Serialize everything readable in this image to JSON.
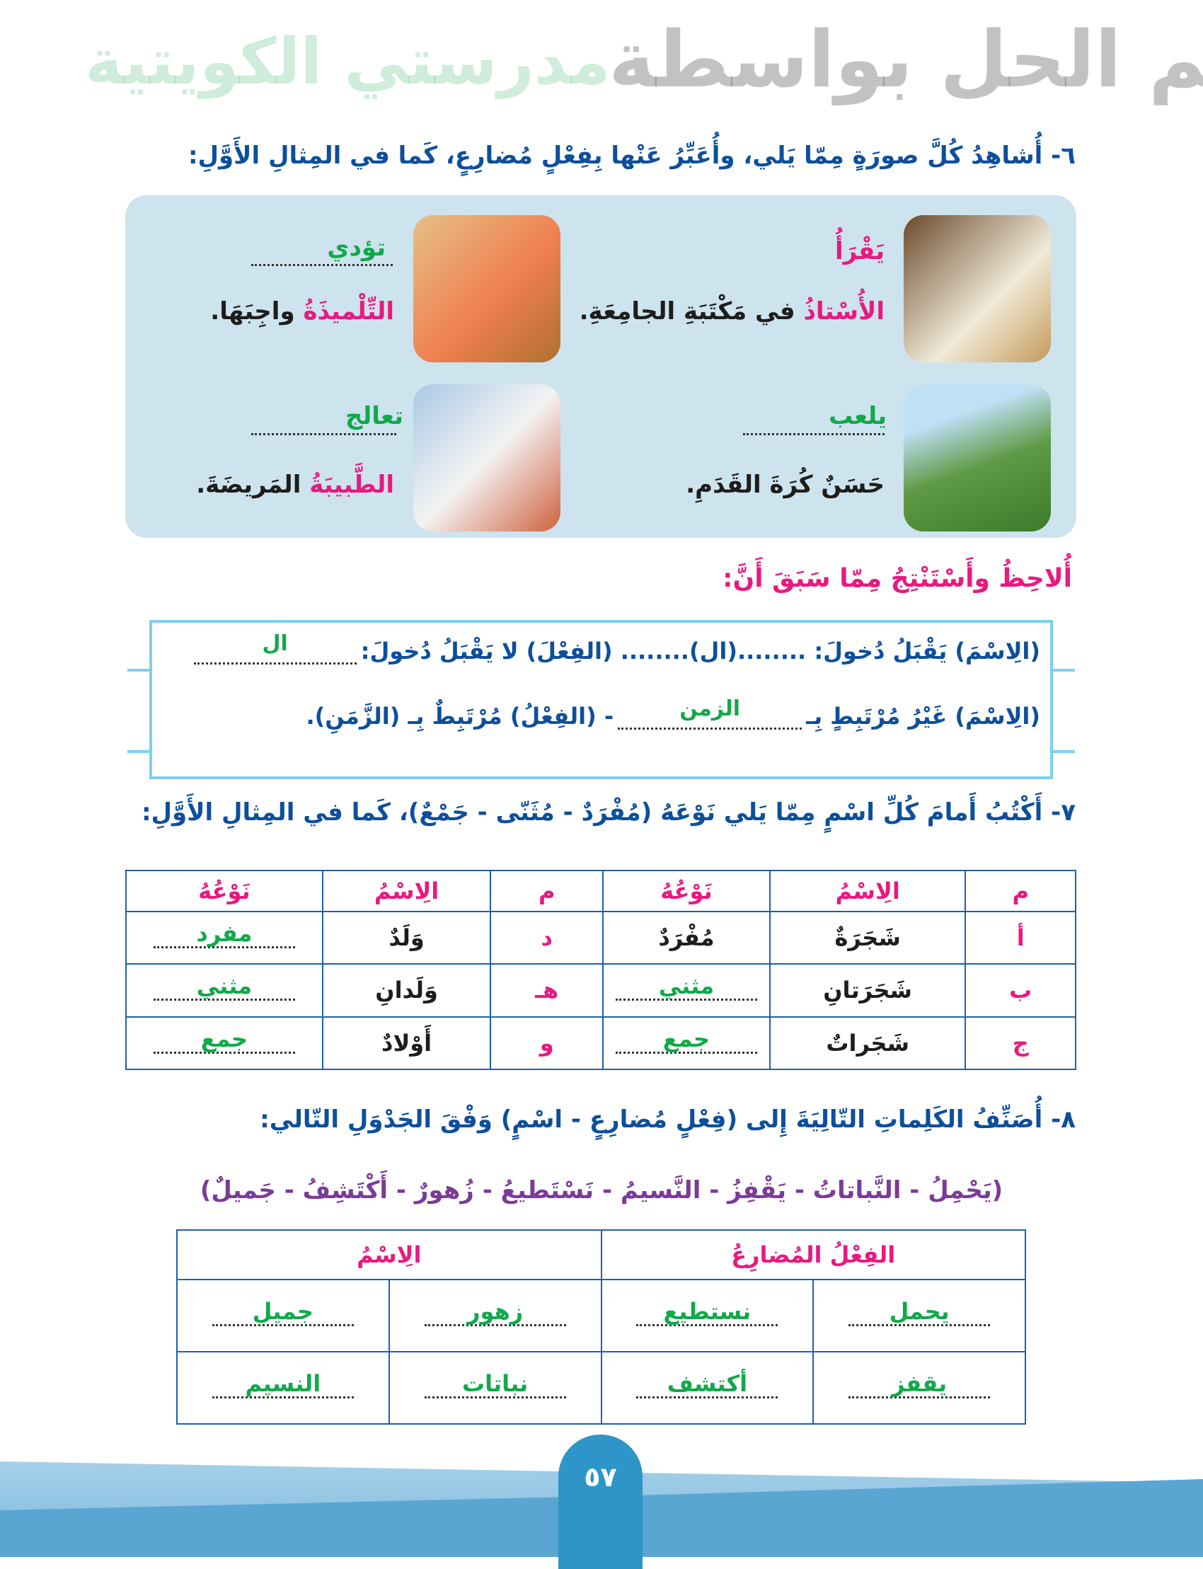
{
  "q6": {
    "title": "٦- أُشاهِدُ كُلَّ صورَةٍ مِمّا يَلي، وأُعَبِّرُ عَنْها بِفِعْلٍ مُضارِعٍ، كَما في المِثالِ الأَوَّلِ:",
    "items": [
      {
        "image": "man-reading-book",
        "answer": "يَقْرَأُ",
        "subject": "الأُسْتاذُ",
        "rest": " في مَكْتَبَةِ الجامِعَةِ."
      },
      {
        "image": "girl-writing-homework",
        "answer": "تؤدي",
        "subject": "التِّلْميذَةُ",
        "rest": " واجِبَهَا."
      },
      {
        "image": "boy-playing-football",
        "answer": "يلعب",
        "subject": "حَسَنٌ",
        "rest": " كُرَةَ القَدَمِ."
      },
      {
        "image": "doctor-with-patient",
        "answer": "تعالج",
        "subject": "الطَّبيبَةُ",
        "rest": " المَريضَةَ."
      }
    ]
  },
  "note": {
    "title": "أُلاحِظُ وأَسْتَنْتِجُ مِمّا سَبَقَ أَنَّ:",
    "line1_a": "(الِاسْمَ) يَقْبَلُ دُخولَ: ........(ال)........ (الفِعْلَ) لا يَقْبَلُ دُخولَ: ",
    "line1_answer": "ال",
    "line2_a": "(الِاسْمَ) غَيْرُ مُرْتَبِطٍ بِـ ",
    "line2_answer": "الزمن",
    "line2_b": " - (الفِعْلُ) مُرْتَبِطٌ بِـ (الزَّمَنِ)."
  },
  "watermark": {
    "line1": "تم الحل بواسطة",
    "line2": "مدرستي الكويتية"
  },
  "q7": {
    "title": "٧- أَكْتُبُ أَمامَ كُلِّ اسْمٍ مِمّا يَلي نَوْعَهُ (مُفْرَدٌ - مُثَنّى - جَمْعٌ)، كَما في المِثالِ الأَوَّلِ:",
    "headers": [
      "م",
      "الِاسْمُ",
      "نَوْعُهُ",
      "م",
      "الِاسْمُ",
      "نَوْعُهُ"
    ],
    "rows": [
      {
        "m1": "أ",
        "name1": "شَجَرَةٌ",
        "type1": "مُفْرَدٌ",
        "type1_is_answer": false,
        "m2": "د",
        "name2": "وَلَدٌ",
        "type2": "مفرد"
      },
      {
        "m1": "ب",
        "name1": "شَجَرَتانِ",
        "type1": "مثني",
        "type1_is_answer": true,
        "m2": "هـ",
        "name2": "وَلَدانِ",
        "type2": "مثني"
      },
      {
        "m1": "ج",
        "name1": "شَجَراتٌ",
        "type1": "جمع",
        "type1_is_answer": true,
        "m2": "و",
        "name2": "أَوْلادٌ",
        "type2": "جمع"
      }
    ]
  },
  "q8": {
    "title": "٨- أُصَنِّفُ الكَلِماتِ التّالِيَةَ إِلى (فِعْلٍ مُضارِعٍ - اسْمٍ) وَفْقَ الجَدْوَلِ التّالي:",
    "words": "(يَحْمِلُ - النَّباتاتُ - يَقْفِزُ - النَّسيمُ - نَسْتَطيعُ - زُهورٌ - أَكْتَشِفُ - جَميلٌ)",
    "headers": [
      "الفِعْلُ المُضارِعُ",
      "الِاسْمُ"
    ],
    "rows": [
      [
        "يحمل",
        "نستطيع",
        "زهور",
        "جميل"
      ],
      [
        "يقفز",
        "أكتشف",
        "نباتات",
        "النسيم"
      ]
    ]
  },
  "page_number": "٥٧",
  "colors": {
    "heading": "#0d4f9c",
    "accent": "#e8197f",
    "answer": "#11a94a",
    "panel": "#cde3ee",
    "words": "#7b3b97"
  }
}
